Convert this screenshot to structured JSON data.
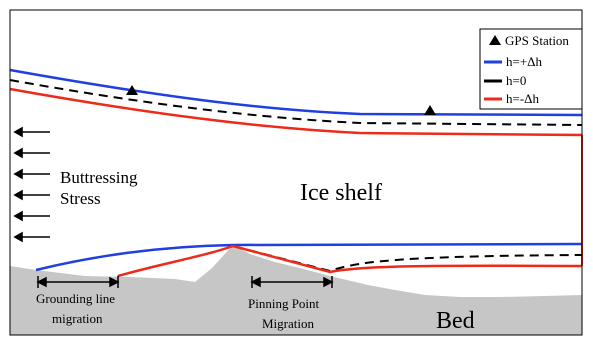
{
  "legend": {
    "station_label": "GPS Station",
    "entries": [
      {
        "label": "h=+Δh",
        "color": "#1f3fe0"
      },
      {
        "label": "h=0",
        "color": "#000000"
      },
      {
        "label": "h=-Δh",
        "color": "#ee2a1b"
      }
    ]
  },
  "labels": {
    "buttressing_line1": "Buttressing",
    "buttressing_line2": "Stress",
    "ice_shelf": "Ice shelf",
    "grounding_line1": "Grounding line",
    "grounding_line2": "migration",
    "pinning_line1": "Pinning Point",
    "pinning_line2": "Migration",
    "bed": "Bed"
  },
  "colors": {
    "bed": "#c6c6c6",
    "frame": "#000000",
    "background": "#ffffff"
  }
}
